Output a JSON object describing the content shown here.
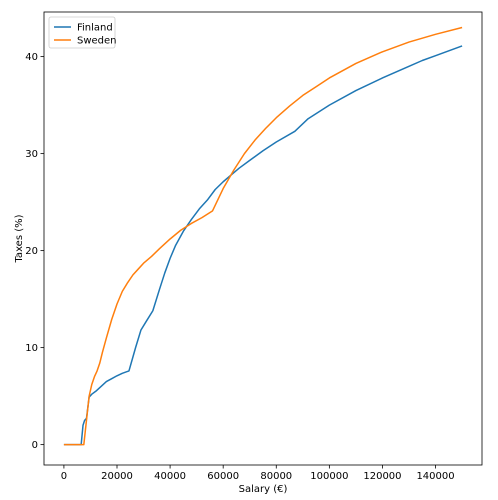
{
  "chart_data": {
    "type": "line",
    "xlabel": "Salary (€)",
    "ylabel": "Taxes (%)",
    "xlim": [
      -7500,
      157500
    ],
    "ylim": [
      -2.1,
      44.6
    ],
    "xticks": [
      0,
      20000,
      40000,
      60000,
      80000,
      100000,
      120000,
      140000
    ],
    "yticks": [
      0,
      10,
      20,
      30,
      40
    ],
    "grid": false,
    "legend_position": "top-left",
    "series": [
      {
        "name": "Finland",
        "color": "#1f77b4",
        "points": [
          [
            0,
            0
          ],
          [
            6500,
            0
          ],
          [
            7200,
            2.0
          ],
          [
            7800,
            2.5
          ],
          [
            8500,
            2.7
          ],
          [
            9500,
            4.9
          ],
          [
            10500,
            5.2
          ],
          [
            12000,
            5.5
          ],
          [
            14000,
            6.0
          ],
          [
            16000,
            6.5
          ],
          [
            18000,
            6.8
          ],
          [
            20000,
            7.1
          ],
          [
            22000,
            7.35
          ],
          [
            24500,
            7.6
          ],
          [
            27000,
            10.0
          ],
          [
            29000,
            11.8
          ],
          [
            31000,
            12.7
          ],
          [
            33500,
            13.8
          ],
          [
            36000,
            16.0
          ],
          [
            38000,
            17.7
          ],
          [
            40000,
            19.2
          ],
          [
            42000,
            20.5
          ],
          [
            45000,
            22.0
          ],
          [
            48000,
            23.2
          ],
          [
            51000,
            24.3
          ],
          [
            54000,
            25.2
          ],
          [
            57000,
            26.3
          ],
          [
            60000,
            27.1
          ],
          [
            63000,
            27.8
          ],
          [
            66000,
            28.5
          ],
          [
            70000,
            29.3
          ],
          [
            75000,
            30.3
          ],
          [
            80000,
            31.2
          ],
          [
            87000,
            32.3
          ],
          [
            92000,
            33.6
          ],
          [
            100000,
            35.0
          ],
          [
            110000,
            36.5
          ],
          [
            120000,
            37.8
          ],
          [
            130000,
            39.0
          ],
          [
            135000,
            39.6
          ],
          [
            140000,
            40.1
          ],
          [
            150000,
            41.1
          ]
        ]
      },
      {
        "name": "Sweden",
        "color": "#ff7f0e",
        "points": [
          [
            0,
            0
          ],
          [
            7500,
            0
          ],
          [
            8500,
            2.5
          ],
          [
            9500,
            5.0
          ],
          [
            10500,
            6.2
          ],
          [
            11500,
            7.0
          ],
          [
            12500,
            7.6
          ],
          [
            13500,
            8.4
          ],
          [
            14500,
            9.5
          ],
          [
            16000,
            11.0
          ],
          [
            18000,
            12.9
          ],
          [
            20000,
            14.5
          ],
          [
            22000,
            15.8
          ],
          [
            24000,
            16.7
          ],
          [
            26000,
            17.5
          ],
          [
            28000,
            18.1
          ],
          [
            30000,
            18.7
          ],
          [
            33000,
            19.4
          ],
          [
            36000,
            20.2
          ],
          [
            40000,
            21.2
          ],
          [
            44000,
            22.1
          ],
          [
            48000,
            22.8
          ],
          [
            52000,
            23.4
          ],
          [
            56000,
            24.1
          ],
          [
            60000,
            26.4
          ],
          [
            64000,
            28.3
          ],
          [
            68000,
            30.0
          ],
          [
            72000,
            31.4
          ],
          [
            76000,
            32.6
          ],
          [
            80000,
            33.7
          ],
          [
            85000,
            34.9
          ],
          [
            90000,
            36.0
          ],
          [
            95000,
            36.9
          ],
          [
            100000,
            37.8
          ],
          [
            110000,
            39.3
          ],
          [
            120000,
            40.5
          ],
          [
            130000,
            41.5
          ],
          [
            140000,
            42.3
          ],
          [
            150000,
            43.0
          ]
        ]
      }
    ]
  }
}
